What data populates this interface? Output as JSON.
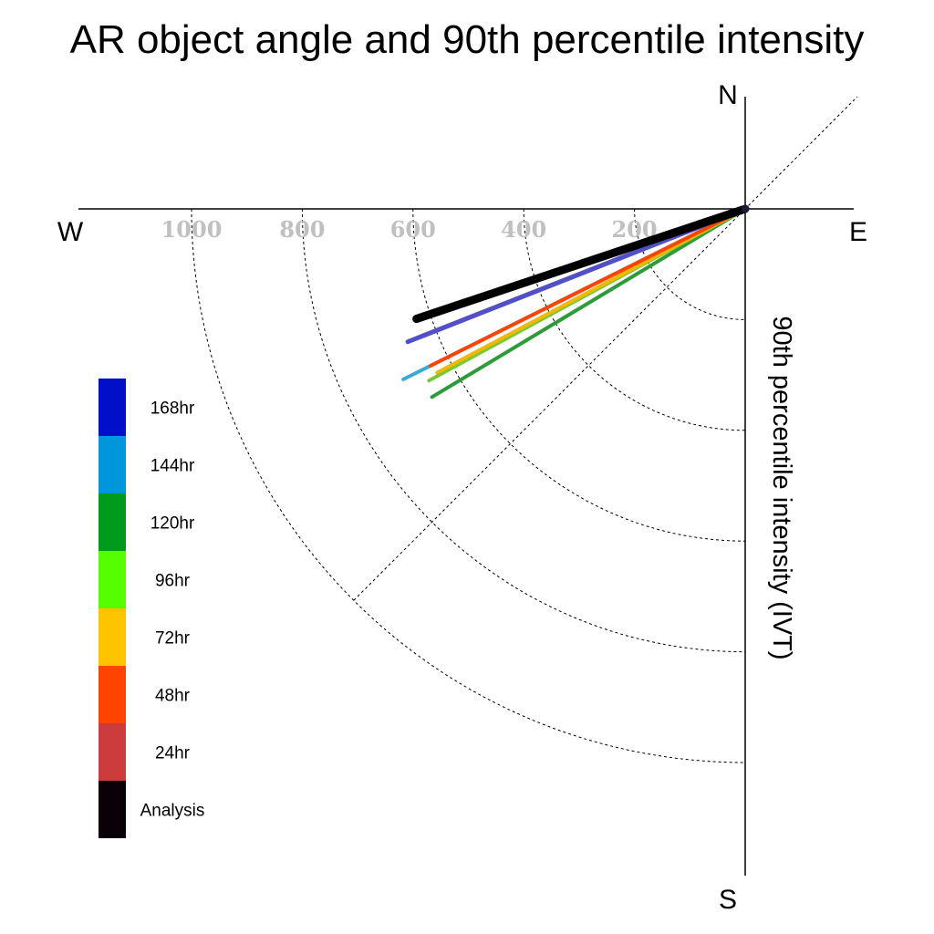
{
  "chart_data": {
    "type": "polar-quadrant",
    "title": "AR object angle and 90th percentile intensity",
    "ylabel": "90th percentile intensity (IVT)",
    "compass": {
      "n": "N",
      "e": "E",
      "s": "S",
      "w": "W"
    },
    "radial_ticks": [
      "200",
      "400",
      "600",
      "800",
      "1000"
    ],
    "radial_tick_values": [
      200,
      400,
      600,
      800,
      1000
    ],
    "r_max": 1000,
    "grid": true,
    "legend_placement": "left",
    "legend": [
      {
        "label": "168hr",
        "color": "#0010c8"
      },
      {
        "label": "144hr",
        "color": "#0096dc"
      },
      {
        "label": "120hr",
        "color": "#009a1c"
      },
      {
        "label": "96hr",
        "color": "#55ff00"
      },
      {
        "label": "72hr",
        "color": "#ffc400"
      },
      {
        "label": "48hr",
        "color": "#ff4400"
      },
      {
        "label": "24hr",
        "color": "#cc3c3c"
      },
      {
        "label": "Analysis",
        "color": "#0a0008"
      }
    ],
    "series": [
      {
        "name": "120hr",
        "angle_deg": 211.0,
        "intensity": 660,
        "color": "#2e9a3a",
        "width": 4
      },
      {
        "name": "144hr",
        "angle_deg": 206.5,
        "intensity": 690,
        "color": "#3aa8d8",
        "width": 4
      },
      {
        "name": "96hr",
        "angle_deg": 208.5,
        "intensity": 650,
        "color": "#7ac83a",
        "width": 4
      },
      {
        "name": "72hr",
        "angle_deg": 208.0,
        "intensity": 630,
        "color": "#f0b800",
        "width": 4
      },
      {
        "name": "48hr",
        "angle_deg": 206.5,
        "intensity": 635,
        "color": "#ff4400",
        "width": 4
      },
      {
        "name": "24hr",
        "angle_deg": 201.5,
        "intensity": 625,
        "color": "#c84848",
        "width": 5
      },
      {
        "name": "168hr",
        "angle_deg": 201.5,
        "intensity": 655,
        "color": "#5050c8",
        "width": 5
      },
      {
        "name": "Analysis",
        "angle_deg": 198.5,
        "intensity": 626,
        "color": "#000000",
        "width": 9
      }
    ]
  }
}
